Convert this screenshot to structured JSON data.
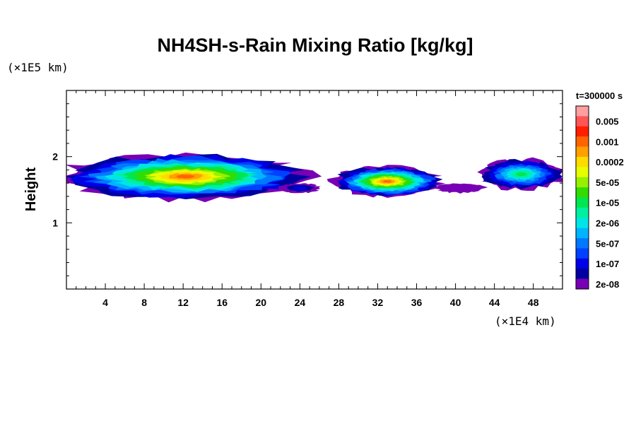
{
  "chart_data": {
    "type": "heatmap",
    "title": "NH4SH-s-Rain Mixing Ratio [kg/kg]",
    "xlabel": "",
    "ylabel": "Height",
    "x_unit": "(×1E4 km)",
    "y_unit": "(×1E5 km)",
    "x_ticks": [
      4,
      8,
      12,
      16,
      20,
      24,
      28,
      32,
      36,
      40,
      44,
      48
    ],
    "y_ticks": [
      1,
      2
    ],
    "xlim": [
      0,
      51
    ],
    "ylim": [
      0,
      3
    ],
    "time_label": "t=300000 s",
    "colorbar": {
      "labels": [
        "0.005",
        "0.001",
        "0.0002",
        "5e-05",
        "1e-05",
        "2e-06",
        "5e-07",
        "1e-07",
        "2e-08"
      ],
      "colors": [
        "#ff9f9f",
        "#ff5555",
        "#ff1e00",
        "#ff6400",
        "#ffa000",
        "#ffdc00",
        "#e6ff00",
        "#96f000",
        "#32dc00",
        "#00e650",
        "#00f0a0",
        "#00e6e6",
        "#00b4ff",
        "#0078ff",
        "#0040ff",
        "#0000e6",
        "#0000a0",
        "#7800b4"
      ]
    },
    "regions": [
      {
        "x": [
          0,
          24.5
        ],
        "y": [
          1.35,
          2.05
        ],
        "peak": "0.001"
      },
      {
        "x": [
          22,
          26
        ],
        "y": [
          1.45,
          1.6
        ],
        "peak": "1e-07"
      },
      {
        "x": [
          27.5,
          38.5
        ],
        "y": [
          1.4,
          1.85
        ],
        "peak": "0.001"
      },
      {
        "x": [
          38,
          43
        ],
        "y": [
          1.45,
          1.6
        ],
        "peak": "2e-08"
      },
      {
        "x": [
          42.5,
          51
        ],
        "y": [
          1.5,
          1.97
        ],
        "peak": "1e-05"
      }
    ]
  }
}
